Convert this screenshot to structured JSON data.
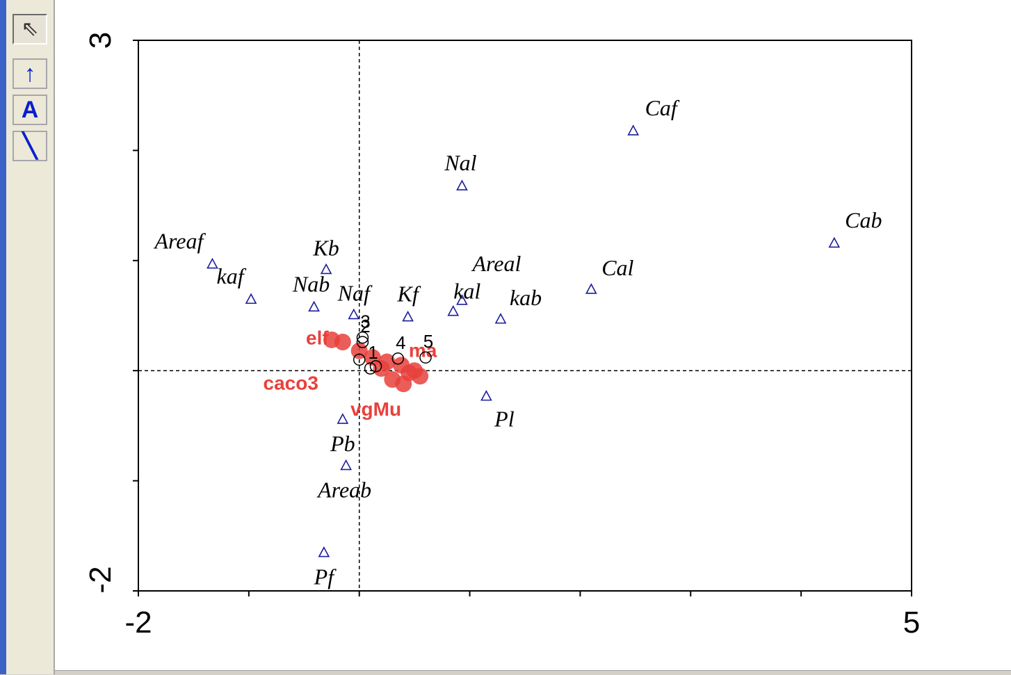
{
  "toolbar": {
    "tools": [
      {
        "name": "pointer",
        "glyph": "⇖",
        "active": true
      },
      {
        "name": "arrow",
        "glyph": "↑",
        "active": false
      },
      {
        "name": "text",
        "glyph": "A",
        "active": false
      },
      {
        "name": "line",
        "glyph": "╲",
        "active": false
      }
    ]
  },
  "chart_data": {
    "type": "scatter",
    "xlim": [
      -2,
      5
    ],
    "ylim": [
      -2,
      3
    ],
    "x_tick_labels": [
      "-2",
      "5"
    ],
    "y_tick_labels": [
      "3",
      "-2"
    ],
    "zero_lines": true,
    "colors": {
      "species": "#1c1c9c",
      "sites": "#000000",
      "environment": "#e8413c"
    },
    "species": [
      {
        "label": "Caf",
        "x": 2.48,
        "y": 2.18
      },
      {
        "label": "Nal",
        "x": 0.93,
        "y": 1.68
      },
      {
        "label": "Cab",
        "x": 4.3,
        "y": 1.16
      },
      {
        "label": "Areaf",
        "x": -1.33,
        "y": 0.97
      },
      {
        "label": "Kb",
        "x": -0.3,
        "y": 0.92
      },
      {
        "label": "kaf",
        "x": -0.98,
        "y": 0.65
      },
      {
        "label": "Nab",
        "x": -0.41,
        "y": 0.58
      },
      {
        "label": "Cal",
        "x": 2.1,
        "y": 0.74
      },
      {
        "label": "Areal",
        "x": 0.93,
        "y": 0.64
      },
      {
        "label": "kal",
        "x": 0.85,
        "y": 0.54
      },
      {
        "label": "kab",
        "x": 1.28,
        "y": 0.47
      },
      {
        "label": "Kf",
        "x": 0.44,
        "y": 0.49
      },
      {
        "label": "Naf",
        "x": -0.05,
        "y": 0.51
      },
      {
        "label": "Pl",
        "x": 1.15,
        "y": -0.23
      },
      {
        "label": "Pb",
        "x": -0.15,
        "y": -0.44
      },
      {
        "label": "Areab",
        "x": -0.12,
        "y": -0.86
      },
      {
        "label": "Pf",
        "x": -0.32,
        "y": -1.65
      }
    ],
    "sites": [
      {
        "label": "3",
        "x": 0.03,
        "y": 0.3
      },
      {
        "label": "2",
        "x": 0.03,
        "y": 0.26
      },
      {
        "label": "4",
        "x": 0.35,
        "y": 0.11
      },
      {
        "label": "5",
        "x": 0.6,
        "y": 0.12
      },
      {
        "label": "1",
        "x": 0.1,
        "y": 0.02
      },
      {
        "label": "",
        "x": 0.0,
        "y": 0.1
      },
      {
        "label": "",
        "x": 0.15,
        "y": 0.04
      }
    ],
    "environment": [
      {
        "label": "ma",
        "x": 0.55,
        "y": 0.1
      },
      {
        "label": "caco3",
        "x": -0.62,
        "y": -0.07
      },
      {
        "label": "elf",
        "x": -0.38,
        "y": 0.3
      },
      {
        "label": "vgMu",
        "x": 0.15,
        "y": -0.22
      }
    ],
    "environment_cluster": [
      {
        "x": 0.0,
        "y": 0.18
      },
      {
        "x": 0.12,
        "y": 0.12
      },
      {
        "x": 0.25,
        "y": 0.08
      },
      {
        "x": 0.38,
        "y": 0.05
      },
      {
        "x": 0.2,
        "y": 0.02
      },
      {
        "x": 0.45,
        "y": -0.02
      },
      {
        "x": 0.3,
        "y": -0.08
      },
      {
        "x": 0.55,
        "y": -0.05
      },
      {
        "x": -0.25,
        "y": 0.28
      },
      {
        "x": -0.15,
        "y": 0.26
      },
      {
        "x": 0.4,
        "y": -0.12
      },
      {
        "x": 0.5,
        "y": 0.0
      }
    ]
  }
}
